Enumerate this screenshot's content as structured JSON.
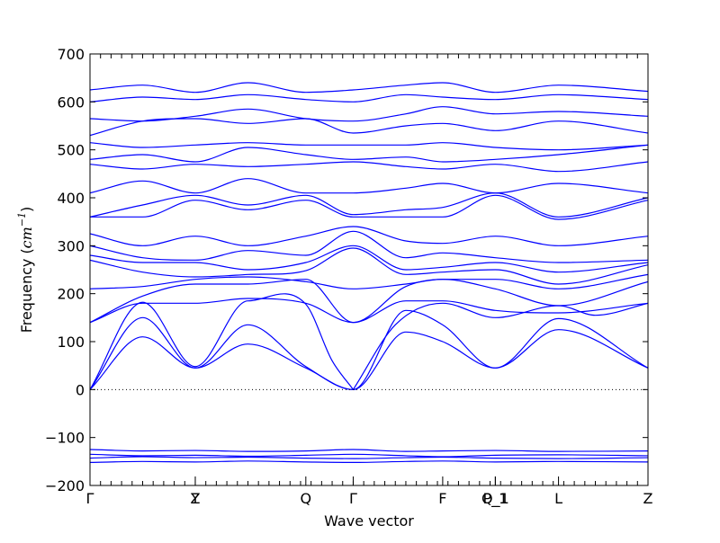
{
  "chart_data": {
    "type": "line",
    "title": "",
    "xlabel": "Wave vector",
    "ylabel": "Frequency (cm⁻¹)",
    "ylabel_prefix": "Frequency (",
    "ylabel_unit": "cm",
    "ylabel_exp": "−1",
    "ylabel_suffix": ")",
    "ylim": [
      -200,
      700
    ],
    "yticks": [
      -200,
      -100,
      0,
      100,
      200,
      300,
      400,
      500,
      600,
      700
    ],
    "xlim": [
      0,
      10.6
    ],
    "high_symmetry_points": [
      {
        "label": "Γ",
        "x": 0
      },
      {
        "label": "Y",
        "x": 2.0
      },
      {
        "label": "Z",
        "x": 2.0
      },
      {
        "label": "Q",
        "x": 4.1
      },
      {
        "label": "Γ",
        "x": 5.0
      },
      {
        "label": "F",
        "x": 6.7
      },
      {
        "label": "P_1",
        "x": 7.7
      },
      {
        "label": "Q_1",
        "x": 7.7
      },
      {
        "label": "L",
        "x": 8.9
      },
      {
        "label": "Z",
        "x": 10.6
      }
    ],
    "zero_line": true,
    "grid": false,
    "band_color": "#0000ff",
    "series": [
      {
        "x": [
          0,
          1.0,
          2.0,
          3.0,
          4.1,
          5.0,
          6.0,
          6.7,
          7.7,
          8.9,
          10.6
        ],
        "y": [
          0,
          110,
          45,
          95,
          45,
          0,
          120,
          100,
          45,
          125,
          45
        ]
      },
      {
        "x": [
          0,
          1.0,
          2.0,
          3.0,
          4.1,
          5.0,
          6.0,
          6.7,
          7.7,
          8.9,
          10.6
        ],
        "y": [
          0,
          150,
          45,
          135,
          48,
          0,
          165,
          135,
          45,
          148,
          45
        ]
      },
      {
        "x": [
          0,
          1.0,
          2.0,
          3.0,
          4.1,
          4.6,
          5.0
        ],
        "y": [
          0,
          182,
          48,
          185,
          178,
          60,
          0
        ]
      },
      {
        "x": [
          5.0,
          5.8,
          6.7,
          7.7,
          8.9,
          9.6,
          10.6
        ],
        "y": [
          0,
          135,
          180,
          150,
          175,
          155,
          180
        ]
      },
      {
        "x": [
          0,
          1.0,
          2.0,
          3.0,
          4.1,
          5.0,
          6.0,
          6.7,
          7.7,
          8.9,
          10.6
        ],
        "y": [
          140,
          180,
          180,
          190,
          180,
          140,
          185,
          185,
          165,
          160,
          180
        ]
      },
      {
        "x": [
          0,
          1.0,
          2.0,
          3.0,
          4.1,
          5.0,
          6.0,
          6.7,
          7.7,
          8.9,
          10.6
        ],
        "y": [
          140,
          195,
          220,
          220,
          230,
          140,
          215,
          230,
          210,
          175,
          225
        ]
      },
      {
        "x": [
          0,
          1.0,
          2.0,
          3.0,
          4.1,
          5.0,
          6.0,
          6.7,
          7.7,
          8.9,
          10.6
        ],
        "y": [
          210,
          215,
          230,
          235,
          225,
          210,
          220,
          230,
          230,
          210,
          240
        ]
      },
      {
        "x": [
          0,
          1.0,
          2.0,
          3.0,
          4.1,
          5.0,
          6.0,
          6.7,
          7.7,
          8.9,
          10.6
        ],
        "y": [
          270,
          245,
          235,
          240,
          248,
          295,
          240,
          245,
          250,
          220,
          260
        ]
      },
      {
        "x": [
          0,
          1.0,
          2.0,
          3.0,
          4.1,
          5.0,
          6.0,
          6.7,
          7.7,
          8.9,
          10.6
        ],
        "y": [
          280,
          265,
          265,
          250,
          265,
          300,
          250,
          255,
          265,
          245,
          265
        ]
      },
      {
        "x": [
          0,
          1.0,
          2.0,
          3.0,
          4.1,
          5.0,
          6.0,
          6.7,
          7.7,
          8.9,
          10.6
        ],
        "y": [
          300,
          275,
          270,
          290,
          280,
          330,
          275,
          285,
          275,
          265,
          270
        ]
      },
      {
        "x": [
          0,
          1.0,
          2.0,
          3.0,
          4.1,
          5.0,
          6.0,
          6.7,
          7.7,
          8.9,
          10.6
        ],
        "y": [
          325,
          300,
          320,
          300,
          320,
          340,
          310,
          305,
          320,
          300,
          320
        ]
      },
      {
        "x": [
          0,
          1.0,
          2.0,
          3.0,
          4.1,
          5.0,
          6.0,
          6.7,
          7.7,
          8.9,
          10.6
        ],
        "y": [
          360,
          360,
          395,
          375,
          395,
          360,
          360,
          360,
          405,
          355,
          395
        ]
      },
      {
        "x": [
          0,
          1.0,
          2.0,
          3.0,
          4.1,
          5.0,
          6.0,
          6.7,
          7.7,
          8.9,
          10.6
        ],
        "y": [
          360,
          385,
          405,
          385,
          405,
          365,
          375,
          380,
          410,
          360,
          400
        ]
      },
      {
        "x": [
          0,
          1.0,
          2.0,
          3.0,
          4.1,
          5.0,
          6.0,
          6.7,
          7.7,
          8.9,
          10.6
        ],
        "y": [
          410,
          435,
          410,
          440,
          410,
          410,
          420,
          430,
          410,
          430,
          410
        ]
      },
      {
        "x": [
          0,
          1.0,
          2.0,
          3.0,
          4.1,
          5.0,
          6.0,
          6.7,
          7.7,
          8.9,
          10.6
        ],
        "y": [
          470,
          460,
          470,
          465,
          470,
          475,
          465,
          460,
          470,
          455,
          475
        ]
      },
      {
        "x": [
          0,
          1.0,
          2.0,
          3.0,
          4.1,
          5.0,
          6.0,
          6.7,
          7.7,
          8.9,
          10.6
        ],
        "y": [
          480,
          490,
          475,
          505,
          490,
          480,
          485,
          475,
          480,
          490,
          510
        ]
      },
      {
        "x": [
          0,
          1.0,
          2.0,
          3.0,
          4.1,
          5.0,
          6.0,
          6.7,
          7.7,
          8.9,
          10.6
        ],
        "y": [
          515,
          505,
          510,
          515,
          510,
          510,
          510,
          515,
          505,
          500,
          510
        ]
      },
      {
        "x": [
          0,
          1.0,
          2.0,
          3.0,
          4.1,
          5.0,
          6.0,
          6.7,
          7.7,
          8.9,
          10.6
        ],
        "y": [
          530,
          560,
          565,
          555,
          565,
          535,
          550,
          555,
          540,
          560,
          535
        ]
      },
      {
        "x": [
          0,
          1.0,
          2.0,
          3.0,
          4.1,
          5.0,
          6.0,
          6.7,
          7.7,
          8.9,
          10.6
        ],
        "y": [
          565,
          560,
          570,
          585,
          565,
          560,
          575,
          590,
          575,
          580,
          570
        ]
      },
      {
        "x": [
          0,
          1.0,
          2.0,
          3.0,
          4.1,
          5.0,
          6.0,
          6.7,
          7.7,
          8.9,
          10.6
        ],
        "y": [
          600,
          610,
          605,
          615,
          605,
          600,
          615,
          610,
          605,
          615,
          605
        ]
      },
      {
        "x": [
          0,
          1.0,
          2.0,
          3.0,
          4.1,
          5.0,
          6.0,
          6.7,
          7.7,
          8.9,
          10.6
        ],
        "y": [
          625,
          635,
          620,
          640,
          620,
          625,
          635,
          640,
          620,
          635,
          622
        ]
      },
      {
        "x": [
          0,
          1.0,
          2.0,
          3.0,
          4.1,
          5.0,
          6.0,
          6.7,
          7.7,
          8.9,
          10.6
        ],
        "y": [
          -125,
          -128,
          -127,
          -129,
          -128,
          -125,
          -129,
          -128,
          -127,
          -129,
          -128
        ]
      },
      {
        "x": [
          0,
          1.0,
          2.0,
          3.0,
          4.1,
          5.0,
          6.0,
          6.7,
          7.7,
          8.9,
          10.6
        ],
        "y": [
          -135,
          -138,
          -137,
          -139,
          -137,
          -135,
          -138,
          -140,
          -137,
          -136,
          -138
        ]
      },
      {
        "x": [
          0,
          1.0,
          2.0,
          3.0,
          4.1,
          5.0,
          6.0,
          6.7,
          7.7,
          8.9,
          10.6
        ],
        "y": [
          -143,
          -140,
          -142,
          -141,
          -143,
          -144,
          -142,
          -141,
          -143,
          -144,
          -142
        ]
      },
      {
        "x": [
          0,
          1.0,
          2.0,
          3.0,
          4.1,
          5.0,
          6.0,
          6.7,
          7.7,
          8.9,
          10.6
        ],
        "y": [
          -152,
          -150,
          -151,
          -149,
          -151,
          -152,
          -150,
          -149,
          -151,
          -150,
          -151
        ]
      }
    ]
  }
}
